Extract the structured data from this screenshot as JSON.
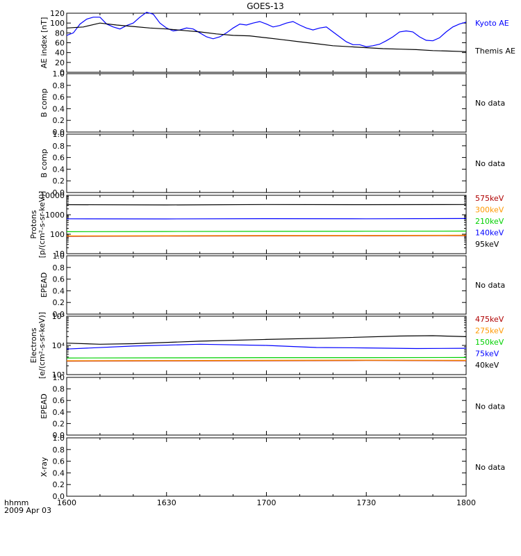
{
  "title": "GOES-13",
  "time_axis": {
    "label_top": "hhmm",
    "label_bottom": "2009 Apr 03",
    "ticks": [
      "1600",
      "1630",
      "1700",
      "1730",
      "1800"
    ],
    "tick_minutes": [
      0,
      30,
      60,
      90,
      120
    ],
    "range_minutes": [
      0,
      120
    ]
  },
  "chart_data": [
    {
      "type": "line",
      "id": "ae",
      "ylabel": "AE index [nT]",
      "ylim": [
        0,
        120
      ],
      "yscale": "linear",
      "yticks": [
        0,
        20,
        40,
        60,
        80,
        100,
        120
      ],
      "yticklabels": [
        "0",
        "20",
        "40",
        "60",
        "80",
        "100",
        "120"
      ],
      "x_units": "minutes after 1600 UT",
      "series": [
        {
          "name": "Kyoto AE",
          "color": "#0000ff",
          "x": [
            0,
            2,
            4,
            6,
            8,
            10,
            12,
            14,
            16,
            18,
            20,
            22,
            24,
            26,
            28,
            30,
            32,
            34,
            36,
            38,
            40,
            42,
            44,
            46,
            48,
            50,
            52,
            54,
            56,
            58,
            60,
            62,
            64,
            66,
            68,
            70,
            72,
            74,
            76,
            78,
            80,
            82,
            84,
            86,
            88,
            90,
            92,
            94,
            96,
            98,
            100,
            102,
            104,
            106,
            108,
            110,
            112,
            114,
            116,
            118,
            120
          ],
          "y": [
            75,
            80,
            98,
            108,
            112,
            112,
            98,
            92,
            88,
            95,
            100,
            112,
            122,
            118,
            100,
            90,
            84,
            86,
            90,
            88,
            80,
            72,
            68,
            72,
            80,
            90,
            98,
            96,
            100,
            103,
            98,
            92,
            95,
            100,
            103,
            96,
            90,
            86,
            90,
            92,
            82,
            72,
            62,
            56,
            56,
            52,
            54,
            57,
            64,
            72,
            82,
            84,
            82,
            72,
            65,
            64,
            70,
            82,
            92,
            98,
            102
          ]
        },
        {
          "name": "Themis AE",
          "color": "#000000",
          "x": [
            0,
            5,
            10,
            15,
            20,
            25,
            30,
            35,
            40,
            45,
            50,
            55,
            60,
            65,
            70,
            75,
            80,
            85,
            90,
            95,
            100,
            105,
            110,
            115,
            120
          ],
          "y": [
            90,
            92,
            100,
            96,
            93,
            90,
            88,
            85,
            82,
            78,
            75,
            74,
            70,
            66,
            62,
            58,
            54,
            52,
            50,
            48,
            47,
            46,
            44,
            43,
            42
          ]
        }
      ]
    },
    {
      "type": "line",
      "id": "b1",
      "ylabel": "B comp",
      "ylim": [
        0,
        1
      ],
      "yscale": "linear",
      "yticks": [
        0,
        0.2,
        0.4,
        0.6,
        0.8,
        1.0
      ],
      "yticklabels": [
        "0.0",
        "0.2",
        "0.4",
        "0.6",
        "0.8",
        "1.0"
      ],
      "note": "No data",
      "series": []
    },
    {
      "type": "line",
      "id": "b2",
      "ylabel": "B comp",
      "ylim": [
        0,
        1
      ],
      "yscale": "linear",
      "yticks": [
        0,
        0.2,
        0.4,
        0.6,
        0.8,
        1.0
      ],
      "yticklabels": [
        "0.0",
        "0.2",
        "0.4",
        "0.6",
        "0.8",
        "1.0"
      ],
      "note": "No data",
      "series": []
    },
    {
      "type": "line",
      "id": "protons",
      "ylabel": "Protons",
      "ylabel2": "[p/(cm²-s-sr-keV)]",
      "ylim": [
        10,
        10000
      ],
      "yscale": "log",
      "yticks": [
        10,
        100,
        1000,
        10000
      ],
      "yticklabels": [
        "10",
        "100",
        "1000",
        "10000"
      ],
      "x_units": "minutes after 1600 UT",
      "series": [
        {
          "name": "575keV",
          "color": "#b00000",
          "x": [
            0,
            30,
            60,
            90,
            120
          ],
          "y": [
            78,
            80,
            82,
            83,
            85
          ]
        },
        {
          "name": "300keV",
          "color": "#ff9900",
          "x": [
            0,
            30,
            60,
            90,
            120
          ],
          "y": [
            82,
            84,
            86,
            87,
            89
          ]
        },
        {
          "name": "210keV",
          "color": "#00d000",
          "x": [
            0,
            30,
            60,
            90,
            120
          ],
          "y": [
            135,
            138,
            140,
            142,
            145
          ]
        },
        {
          "name": "140keV",
          "color": "#0000ff",
          "x": [
            0,
            30,
            60,
            90,
            120
          ],
          "y": [
            620,
            610,
            630,
            620,
            640
          ]
        },
        {
          "name": "95keV",
          "color": "#000000",
          "x": [
            0,
            30,
            60,
            90,
            120
          ],
          "y": [
            3300,
            3200,
            3350,
            3300,
            3350
          ]
        }
      ]
    },
    {
      "type": "line",
      "id": "epead1",
      "ylabel": "EPEAD",
      "ylim": [
        0,
        1
      ],
      "yscale": "linear",
      "yticks": [
        0,
        0.2,
        0.4,
        0.6,
        0.8,
        1.0
      ],
      "yticklabels": [
        "0.0",
        "0.2",
        "0.4",
        "0.6",
        "0.8",
        "1.0"
      ],
      "note": "No data",
      "series": []
    },
    {
      "type": "line",
      "id": "electrons",
      "ylabel": "Electrons",
      "ylabel2": "[e/(cm²-s-sr-keV)]",
      "ylim": [
        1000,
        100000
      ],
      "yscale": "log",
      "yticks": [
        1000,
        10000,
        100000
      ],
      "yticklabels": [
        "10³",
        "10⁴",
        "10⁵"
      ],
      "x_units": "minutes after 1600 UT",
      "series": [
        {
          "name": "475keV",
          "color": "#b00000",
          "x": [
            0,
            30,
            60,
            90,
            120
          ],
          "y": [
            2900,
            2950,
            3000,
            3050,
            3000
          ]
        },
        {
          "name": "275keV",
          "color": "#ff9900",
          "x": [
            0,
            30,
            60,
            90,
            120
          ],
          "y": [
            3000,
            3050,
            3100,
            3150,
            3100
          ]
        },
        {
          "name": "150keV",
          "color": "#00d000",
          "x": [
            0,
            30,
            60,
            90,
            120
          ],
          "y": [
            3700,
            3750,
            3800,
            3800,
            3850
          ]
        },
        {
          "name": "75keV",
          "color": "#0000ff",
          "x": [
            0,
            20,
            40,
            60,
            75,
            90,
            105,
            120
          ],
          "y": [
            7500,
            9500,
            11000,
            10000,
            8500,
            8200,
            7800,
            8000
          ]
        },
        {
          "name": "40keV",
          "color": "#000000",
          "x": [
            0,
            10,
            20,
            40,
            60,
            80,
            100,
            110,
            120
          ],
          "y": [
            12000,
            11000,
            11500,
            14000,
            16000,
            18000,
            21000,
            21500,
            20000
          ]
        }
      ]
    },
    {
      "type": "line",
      "id": "epead2",
      "ylabel": "EPEAD",
      "ylim": [
        0,
        1
      ],
      "yscale": "linear",
      "yticks": [
        0,
        0.2,
        0.4,
        0.6,
        0.8,
        1.0
      ],
      "yticklabels": [
        "0.0",
        "0.2",
        "0.4",
        "0.6",
        "0.8",
        "1.0"
      ],
      "note": "No data",
      "series": []
    },
    {
      "type": "line",
      "id": "xray",
      "ylabel": "X-ray",
      "ylim": [
        0,
        1
      ],
      "yscale": "linear",
      "yticks": [
        0,
        0.2,
        0.4,
        0.6,
        0.8,
        1.0
      ],
      "yticklabels": [
        "0.0",
        "0.2",
        "0.4",
        "0.6",
        "0.8",
        "1.0"
      ],
      "note": "No data",
      "series": []
    }
  ]
}
